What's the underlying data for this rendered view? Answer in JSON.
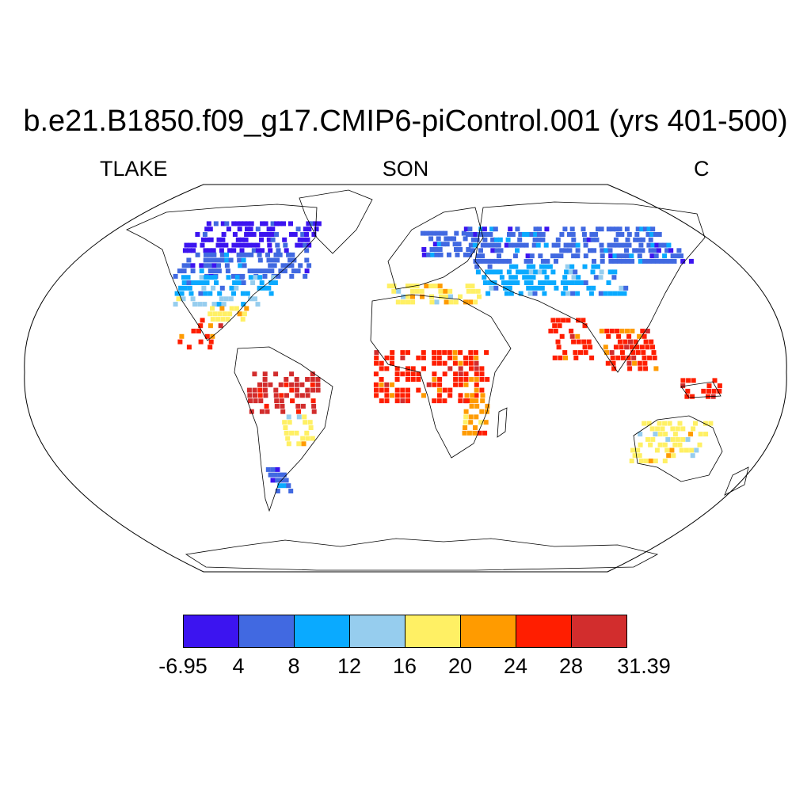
{
  "title": "b.e21.B1850.f09_g17.CMIP6-piControl.001 (yrs 401-500)",
  "variable": "TLAKE",
  "season": "SON",
  "units": "C",
  "colorbar": {
    "colors": [
      "#3c14f0",
      "#4169e1",
      "#0aaaff",
      "#96cdee",
      "#fff064",
      "#ff9b00",
      "#ff1e00",
      "#d22d2d"
    ],
    "labels": [
      "-6.95",
      "4",
      "8",
      "12",
      "16",
      "20",
      "24",
      "28",
      "31.39"
    ]
  },
  "map_data": {
    "projection": "robinson",
    "regions": [
      {
        "name": "northern-canada",
        "lon": [
          -140,
          -60
        ],
        "lat": [
          60,
          75
        ],
        "class": 0
      },
      {
        "name": "southern-canada",
        "lon": [
          -130,
          -55
        ],
        "lat": [
          48,
          60
        ],
        "class": 1
      },
      {
        "name": "northern-usa",
        "lon": [
          -125,
          -70
        ],
        "lat": [
          40,
          48
        ],
        "class": 2
      },
      {
        "name": "central-usa",
        "lon": [
          -120,
          -75
        ],
        "lat": [
          35,
          40
        ],
        "class": 3
      },
      {
        "name": "southern-usa",
        "lon": [
          -100,
          -80
        ],
        "lat": [
          28,
          35
        ],
        "class": 4
      },
      {
        "name": "mexico",
        "lon": [
          -110,
          -90
        ],
        "lat": [
          15,
          28
        ],
        "class": 6
      },
      {
        "name": "amazon",
        "lon": [
          -75,
          -40
        ],
        "lat": [
          -15,
          5
        ],
        "class": 7
      },
      {
        "name": "south-brazil",
        "lon": [
          -60,
          -45
        ],
        "lat": [
          -30,
          -15
        ],
        "class": 4
      },
      {
        "name": "patagonia",
        "lon": [
          -75,
          -65
        ],
        "lat": [
          -52,
          -40
        ],
        "class": 1
      },
      {
        "name": "scandinavia",
        "lon": [
          10,
          40
        ],
        "lat": [
          58,
          70
        ],
        "class": 1
      },
      {
        "name": "siberia",
        "lon": [
          40,
          170
        ],
        "lat": [
          55,
          72
        ],
        "class": 1
      },
      {
        "name": "central-asia",
        "lon": [
          40,
          120
        ],
        "lat": [
          40,
          55
        ],
        "class": 2
      },
      {
        "name": "mediterranean",
        "lon": [
          -10,
          40
        ],
        "lat": [
          36,
          44
        ],
        "class": 4
      },
      {
        "name": "india",
        "lon": [
          70,
          90
        ],
        "lat": [
          10,
          28
        ],
        "class": 6
      },
      {
        "name": "southeast-asia",
        "lon": [
          95,
          120
        ],
        "lat": [
          5,
          25
        ],
        "class": 6
      },
      {
        "name": "central-africa",
        "lon": [
          -15,
          40
        ],
        "lat": [
          -10,
          15
        ],
        "class": 6
      },
      {
        "name": "east-africa",
        "lon": [
          28,
          40
        ],
        "lat": [
          -25,
          -5
        ],
        "class": 5
      },
      {
        "name": "australia",
        "lon": [
          115,
          150
        ],
        "lat": [
          -38,
          -20
        ],
        "class": 4
      },
      {
        "name": "new-guinea",
        "lon": [
          130,
          150
        ],
        "lat": [
          -8,
          0
        ],
        "class": 6
      }
    ]
  }
}
